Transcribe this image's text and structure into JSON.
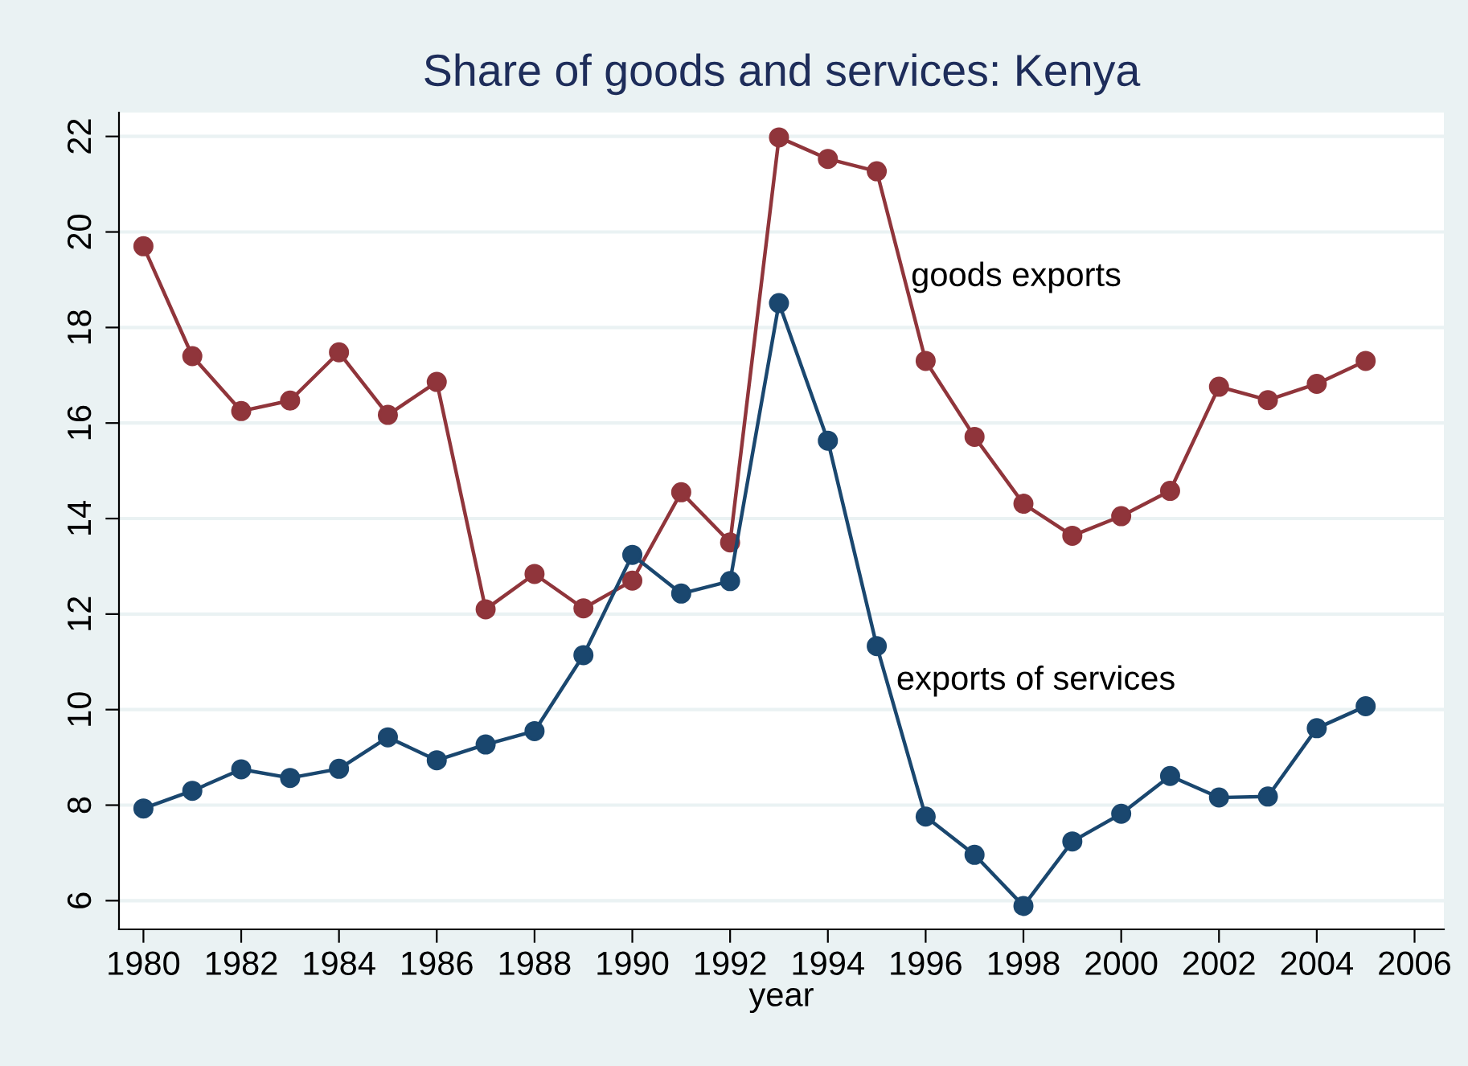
{
  "chart_data": {
    "type": "line",
    "title": "Share of goods and services: Kenya",
    "xlabel": "year",
    "x": [
      1980,
      1981,
      1982,
      1983,
      1984,
      1985,
      1986,
      1987,
      1988,
      1989,
      1990,
      1991,
      1992,
      1993,
      1994,
      1995,
      1996,
      1997,
      1998,
      1999,
      2000,
      2001,
      2002,
      2003,
      2004,
      2005
    ],
    "series": [
      {
        "color": "#90353b",
        "values": [
          19.7,
          17.4,
          16.25,
          16.47,
          17.48,
          16.17,
          16.86,
          12.1,
          12.84,
          12.12,
          12.7,
          14.55,
          13.5,
          21.98,
          21.53,
          21.27,
          17.3,
          15.71,
          14.31,
          13.64,
          14.05,
          14.58,
          16.76,
          16.48,
          16.82,
          17.3
        ]
      },
      {
        "color": "#1a476f",
        "values": [
          7.93,
          8.3,
          8.75,
          8.57,
          8.76,
          9.42,
          8.94,
          9.27,
          9.55,
          11.14,
          13.24,
          12.43,
          12.69,
          18.51,
          15.63,
          11.33,
          7.76,
          6.96,
          5.89,
          7.24,
          7.82,
          8.61,
          8.16,
          8.18,
          9.61,
          10.07
        ]
      }
    ],
    "annotations": [
      {
        "text": "goods exports",
        "x": 1995.7,
        "y": 19.05
      },
      {
        "text": "exports of services",
        "x": 1995.4,
        "y": 10.6
      }
    ],
    "xlim": [
      1979.5,
      2006.6
    ],
    "ylim": [
      5.4,
      22.5
    ],
    "xticks": [
      1980,
      1982,
      1984,
      1986,
      1988,
      1990,
      1992,
      1994,
      1996,
      1998,
      2000,
      2002,
      2004,
      2006
    ],
    "yticks": [
      6,
      8,
      10,
      12,
      14,
      16,
      18,
      20,
      22
    ],
    "grid": "y",
    "legend": false,
    "marker": "circle",
    "line_style": "solid"
  }
}
